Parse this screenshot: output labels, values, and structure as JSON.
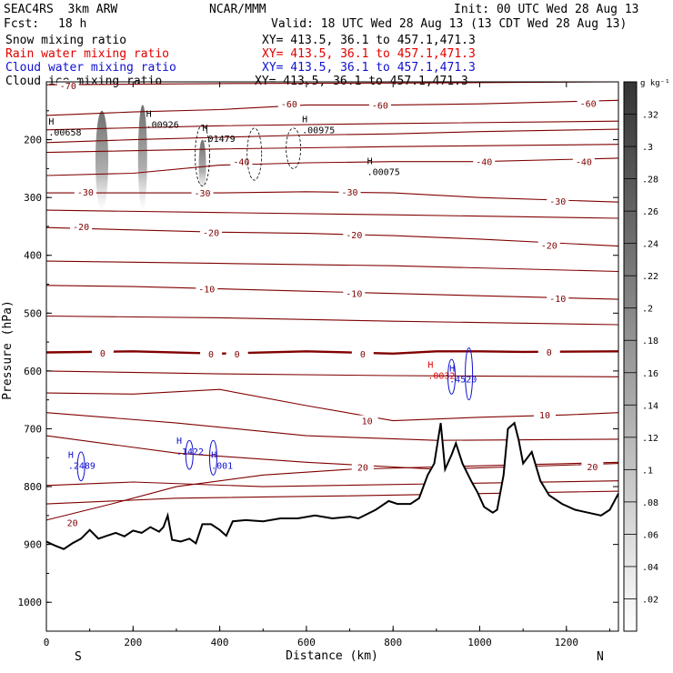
{
  "header": {
    "title_left": "SEAC4RS  3km ARW",
    "title_center": "NCAR/MMM",
    "init": "Init: 00 UTC Wed 28 Aug 13",
    "fcst_label": "Fcst:",
    "fcst_value": "18 h",
    "valid": "Valid: 18 UTC Wed 28 Aug 13 (13 CDT Wed 28 Aug 13)",
    "xy_range": "XY= 413.5, 36.1 to 457.1,471.3",
    "fields": [
      {
        "label": "Snow mixing ratio",
        "color": "#000000"
      },
      {
        "label": "Rain water mixing ratio",
        "color": "#e00000"
      },
      {
        "label": "Cloud water mixing ratio",
        "color": "#1010d0"
      },
      {
        "label": "Cloud ice mixing ratio",
        "color": "#000000"
      }
    ]
  },
  "chart_data": {
    "type": "cross-section",
    "xlabel": "Distance (km)",
    "ylabel": "Pressure (hPa)",
    "xlim": [
      0,
      1320
    ],
    "ylim": [
      1050,
      100
    ],
    "x_ticks": [
      "0",
      "200",
      "400",
      "600",
      "800",
      "1000",
      "1200"
    ],
    "y_ticks": [
      "200",
      "300",
      "400",
      "500",
      "600",
      "700",
      "800",
      "900",
      "1000"
    ],
    "left_end_label": "S",
    "right_end_label": "N",
    "colorbar": {
      "unit": "g kg⁻¹",
      "ticks": [
        ".02",
        ".04",
        ".06",
        ".08",
        ".1",
        ".12",
        ".14",
        ".16",
        ".18",
        ".2",
        ".22",
        ".24",
        ".26",
        ".28",
        ".3",
        ".32"
      ],
      "min": 0,
      "max": 0.34
    },
    "temperature_contours_C": [
      -70,
      -60,
      -50,
      -40,
      -30,
      -20,
      -10,
      0,
      10,
      20,
      30
    ],
    "temperature_contour_labels": [
      {
        "x": 50,
        "p": 106,
        "text": "-70"
      },
      {
        "x": 560,
        "p": 138,
        "text": "-60"
      },
      {
        "x": 770,
        "p": 140,
        "text": "-60"
      },
      {
        "x": 1250,
        "p": 137,
        "text": "-60"
      },
      {
        "x": 450,
        "p": 238,
        "text": "-40"
      },
      {
        "x": 1010,
        "p": 238,
        "text": "-40"
      },
      {
        "x": 1240,
        "p": 238,
        "text": "-40"
      },
      {
        "x": 90,
        "p": 290,
        "text": "-30"
      },
      {
        "x": 360,
        "p": 292,
        "text": "-30"
      },
      {
        "x": 700,
        "p": 290,
        "text": "-30"
      },
      {
        "x": 1180,
        "p": 306,
        "text": "-30"
      },
      {
        "x": 80,
        "p": 350,
        "text": "-20"
      },
      {
        "x": 380,
        "p": 360,
        "text": "-20"
      },
      {
        "x": 710,
        "p": 364,
        "text": "-20"
      },
      {
        "x": 1160,
        "p": 382,
        "text": "-20"
      },
      {
        "x": 370,
        "p": 458,
        "text": "-10"
      },
      {
        "x": 710,
        "p": 466,
        "text": "-10"
      },
      {
        "x": 1180,
        "p": 474,
        "text": "-10"
      },
      {
        "x": 130,
        "p": 569,
        "text": "0"
      },
      {
        "x": 380,
        "p": 570,
        "text": "0"
      },
      {
        "x": 440,
        "p": 570,
        "text": "0"
      },
      {
        "x": 730,
        "p": 570,
        "text": "0"
      },
      {
        "x": 1160,
        "p": 567,
        "text": "0"
      },
      {
        "x": 740,
        "p": 686,
        "text": "10"
      },
      {
        "x": 1150,
        "p": 676,
        "text": "10"
      },
      {
        "x": 730,
        "p": 766,
        "text": "20"
      },
      {
        "x": 1260,
        "p": 765,
        "text": "20"
      },
      {
        "x": 60,
        "p": 862,
        "text": "20"
      }
    ],
    "snow_maxima": [
      {
        "x": 5,
        "p": 190,
        "label": ".00658"
      },
      {
        "x": 230,
        "p": 176,
        "label": ".00926"
      },
      {
        "x": 360,
        "p": 201,
        "label": ".01479"
      },
      {
        "x": 590,
        "p": 186,
        "label": ".00975"
      },
      {
        "x": 740,
        "p": 258,
        "label": ".00075"
      }
    ],
    "rain_maxima": [
      {
        "x": 880,
        "p": 610,
        "label": ".0032"
      }
    ],
    "cloud_water_maxima": [
      {
        "x": 50,
        "p": 766,
        "label": ".2489"
      },
      {
        "x": 300,
        "p": 742,
        "label": ".1422"
      },
      {
        "x": 380,
        "p": 766,
        "label": ".001"
      },
      {
        "x": 930,
        "p": 617,
        "label": ".4520"
      }
    ],
    "terrain_surface_pressure_hPa": [
      [
        0,
        895
      ],
      [
        20,
        902
      ],
      [
        40,
        908
      ],
      [
        60,
        898
      ],
      [
        80,
        890
      ],
      [
        100,
        875
      ],
      [
        120,
        890
      ],
      [
        140,
        885
      ],
      [
        160,
        880
      ],
      [
        180,
        886
      ],
      [
        200,
        876
      ],
      [
        220,
        880
      ],
      [
        240,
        870
      ],
      [
        260,
        878
      ],
      [
        270,
        870
      ],
      [
        280,
        850
      ],
      [
        290,
        892
      ],
      [
        310,
        895
      ],
      [
        330,
        890
      ],
      [
        345,
        898
      ],
      [
        360,
        865
      ],
      [
        380,
        865
      ],
      [
        400,
        875
      ],
      [
        415,
        885
      ],
      [
        430,
        860
      ],
      [
        460,
        858
      ],
      [
        500,
        860
      ],
      [
        540,
        855
      ],
      [
        580,
        855
      ],
      [
        620,
        850
      ],
      [
        660,
        855
      ],
      [
        700,
        852
      ],
      [
        720,
        855
      ],
      [
        760,
        840
      ],
      [
        790,
        825
      ],
      [
        810,
        830
      ],
      [
        840,
        830
      ],
      [
        860,
        820
      ],
      [
        880,
        780
      ],
      [
        895,
        760
      ],
      [
        910,
        690
      ],
      [
        920,
        770
      ],
      [
        935,
        745
      ],
      [
        945,
        725
      ],
      [
        960,
        760
      ],
      [
        980,
        790
      ],
      [
        995,
        810
      ],
      [
        1010,
        835
      ],
      [
        1030,
        845
      ],
      [
        1040,
        840
      ],
      [
        1055,
        780
      ],
      [
        1065,
        700
      ],
      [
        1080,
        690
      ],
      [
        1090,
        720
      ],
      [
        1100,
        760
      ],
      [
        1120,
        740
      ],
      [
        1140,
        790
      ],
      [
        1160,
        815
      ],
      [
        1190,
        830
      ],
      [
        1220,
        840
      ],
      [
        1250,
        845
      ],
      [
        1280,
        850
      ],
      [
        1300,
        840
      ],
      [
        1320,
        812
      ]
    ]
  }
}
